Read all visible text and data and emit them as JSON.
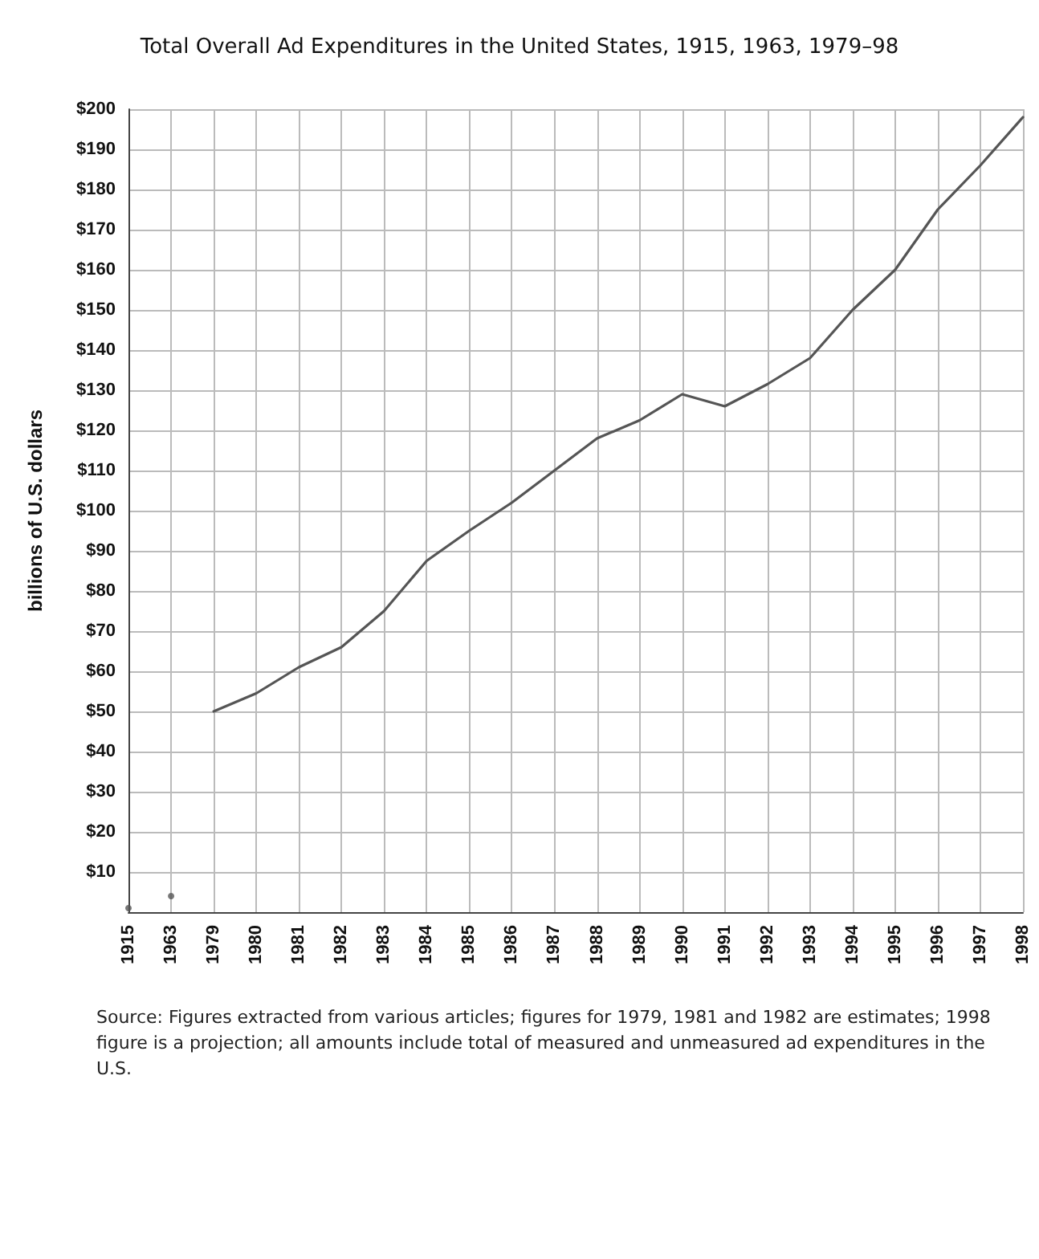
{
  "chart_data": {
    "type": "line",
    "title": "Total Overall Ad Expenditures in the United States, 1915, 1963, 1979–98",
    "ylabel": "billions of U.S. dollars",
    "categories": [
      "1915",
      "1963",
      "1979",
      "1980",
      "1981",
      "1982",
      "1983",
      "1984",
      "1985",
      "1986",
      "1987",
      "1988",
      "1989",
      "1990",
      "1991",
      "1992",
      "1993",
      "1994",
      "1995",
      "1996",
      "1997",
      "1998"
    ],
    "series": [
      {
        "color": "#555555",
        "marker": "none",
        "values": [
          null,
          null,
          50,
          54.5,
          61,
          66,
          75,
          87.5,
          95,
          102,
          110,
          118,
          122.5,
          129,
          126,
          131.5,
          138,
          150,
          160,
          175,
          186,
          198
        ]
      },
      {
        "type": "scatter",
        "color": "#555555",
        "marker": "circle",
        "values": [
          1,
          4,
          null,
          null,
          null,
          null,
          null,
          null,
          null,
          null,
          null,
          null,
          null,
          null,
          null,
          null,
          null,
          null,
          null,
          null,
          null,
          null
        ]
      }
    ],
    "ylim": [
      0,
      200
    ],
    "yticks": [
      {
        "value": 0,
        "label": null
      },
      {
        "value": 10,
        "label": "$10"
      },
      {
        "value": 20,
        "label": "$20"
      },
      {
        "value": 30,
        "label": "$30"
      },
      {
        "value": 40,
        "label": "$40"
      },
      {
        "value": 50,
        "label": "$50"
      },
      {
        "value": 60,
        "label": "$60"
      },
      {
        "value": 70,
        "label": "$70"
      },
      {
        "value": 80,
        "label": "$80"
      },
      {
        "value": 90,
        "label": "$90"
      },
      {
        "value": 100,
        "label": "$100"
      },
      {
        "value": 110,
        "label": "$110"
      },
      {
        "value": 120,
        "label": "$120"
      },
      {
        "value": 130,
        "label": "$130"
      },
      {
        "value": 140,
        "label": "$140"
      },
      {
        "value": 150,
        "label": "$150"
      },
      {
        "value": 160,
        "label": "$160"
      },
      {
        "value": 170,
        "label": "$170"
      },
      {
        "value": 180,
        "label": "$180"
      },
      {
        "value": 190,
        "label": "$190"
      },
      {
        "value": 200,
        "label": "$200"
      }
    ],
    "grid": true,
    "line_style": "solid",
    "annotations": [
      "Source: Figures extracted from various articles; figures for 1979, 1981 and 1982 are estimates; 1998 figure is a projection; all amounts include total of measured and unmeasured ad expenditures in the U.S."
    ]
  }
}
